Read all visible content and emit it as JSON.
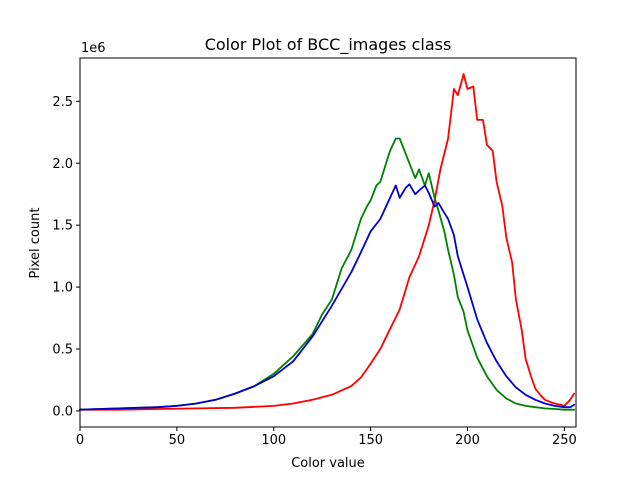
{
  "chart_data": {
    "type": "line",
    "title": "Color Plot of BCC_images class",
    "xlabel": "Color value",
    "ylabel": "Pixel count",
    "y_multiplier_label": "1e6",
    "xlim": [
      0,
      256
    ],
    "ylim": [
      -0.13,
      2.85
    ],
    "xticks": [
      0,
      50,
      100,
      150,
      200,
      250
    ],
    "xtick_labels": [
      "0",
      "50",
      "100",
      "150",
      "200",
      "250"
    ],
    "yticks": [
      0.0,
      0.5,
      1.0,
      1.5,
      2.0,
      2.5
    ],
    "ytick_labels": [
      "0.0",
      "0.5",
      "1.0",
      "1.5",
      "2.0",
      "2.5"
    ],
    "grid": false,
    "series": [
      {
        "color": "#ff0000",
        "x": [
          0,
          20,
          40,
          60,
          80,
          100,
          110,
          120,
          130,
          140,
          145,
          150,
          155,
          160,
          165,
          170,
          175,
          180,
          183,
          186,
          190,
          193,
          195,
          198,
          200,
          203,
          205,
          208,
          210,
          213,
          215,
          218,
          220,
          223,
          225,
          228,
          230,
          233,
          235,
          238,
          240,
          243,
          245,
          248,
          250,
          253,
          255
        ],
        "values": [
          0.01,
          0.01,
          0.015,
          0.02,
          0.025,
          0.04,
          0.06,
          0.09,
          0.13,
          0.2,
          0.27,
          0.38,
          0.5,
          0.66,
          0.82,
          1.08,
          1.25,
          1.5,
          1.7,
          1.95,
          2.2,
          2.6,
          2.55,
          2.72,
          2.6,
          2.62,
          2.35,
          2.35,
          2.15,
          2.1,
          1.85,
          1.65,
          1.4,
          1.2,
          0.9,
          0.65,
          0.42,
          0.27,
          0.18,
          0.12,
          0.09,
          0.07,
          0.06,
          0.05,
          0.04,
          0.09,
          0.14
        ]
      },
      {
        "color": "#008000",
        "x": [
          0,
          20,
          40,
          50,
          60,
          70,
          80,
          90,
          100,
          105,
          110,
          115,
          120,
          125,
          130,
          135,
          140,
          145,
          148,
          150,
          153,
          155,
          158,
          160,
          163,
          165,
          168,
          170,
          173,
          175,
          178,
          180,
          183,
          185,
          188,
          190,
          193,
          195,
          198,
          200,
          205,
          210,
          215,
          220,
          225,
          230,
          235,
          240,
          245,
          250,
          255
        ],
        "values": [
          0.01,
          0.02,
          0.03,
          0.04,
          0.06,
          0.09,
          0.14,
          0.2,
          0.3,
          0.37,
          0.44,
          0.53,
          0.62,
          0.78,
          0.9,
          1.15,
          1.3,
          1.55,
          1.65,
          1.7,
          1.82,
          1.85,
          2.0,
          2.1,
          2.2,
          2.2,
          2.08,
          2.0,
          1.88,
          1.95,
          1.82,
          1.92,
          1.72,
          1.62,
          1.45,
          1.3,
          1.1,
          0.92,
          0.8,
          0.65,
          0.43,
          0.28,
          0.17,
          0.1,
          0.06,
          0.04,
          0.03,
          0.02,
          0.015,
          0.01,
          0.01
        ]
      },
      {
        "color": "#0000cc",
        "x": [
          0,
          20,
          40,
          50,
          60,
          70,
          80,
          90,
          100,
          110,
          120,
          130,
          140,
          145,
          150,
          155,
          160,
          163,
          165,
          168,
          170,
          173,
          175,
          178,
          180,
          183,
          185,
          188,
          190,
          193,
          195,
          200,
          205,
          210,
          215,
          220,
          225,
          230,
          235,
          240,
          245,
          250,
          253,
          255
        ],
        "values": [
          0.01,
          0.02,
          0.03,
          0.04,
          0.06,
          0.09,
          0.14,
          0.2,
          0.28,
          0.4,
          0.6,
          0.85,
          1.12,
          1.28,
          1.45,
          1.55,
          1.72,
          1.82,
          1.72,
          1.8,
          1.83,
          1.75,
          1.78,
          1.82,
          1.76,
          1.65,
          1.68,
          1.6,
          1.55,
          1.42,
          1.25,
          1.0,
          0.74,
          0.55,
          0.4,
          0.28,
          0.19,
          0.13,
          0.09,
          0.06,
          0.04,
          0.03,
          0.03,
          0.05
        ]
      }
    ]
  }
}
